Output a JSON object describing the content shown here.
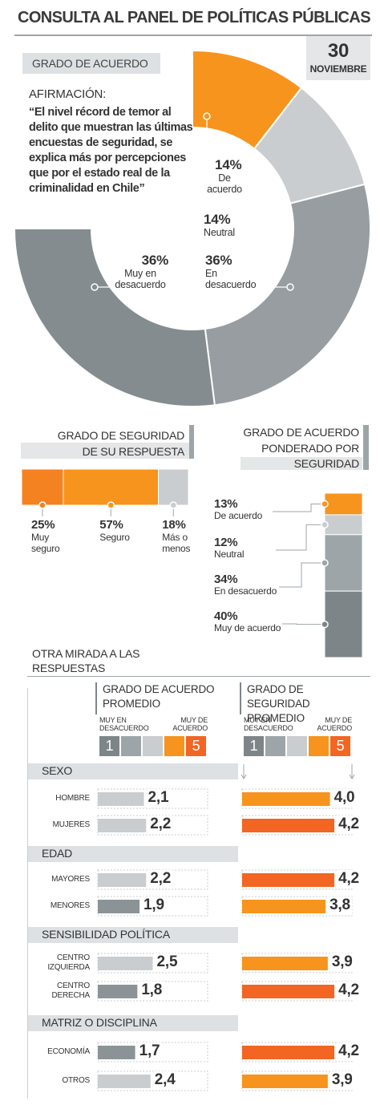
{
  "header": {
    "title": "CONSULTA AL PANEL DE POLÍTICAS PÚBLICAS",
    "day": 30,
    "month": "NOVIEMBRE"
  },
  "statement": {
    "label": "AFIRMACIÓN:",
    "text": "“El nivel récord de temor al delito que muestran las últimas encuestas de seguridad, se explica más por percepciones que por el estado real de la criminalidad en Chile”"
  },
  "chart_data": [
    {
      "type": "donut",
      "title": "GRADO DE ACUERDO",
      "categories": [
        "De acuerdo",
        "Neutral",
        "En desacuerdo",
        "Muy en desacuerdo"
      ],
      "values": [
        14,
        14,
        36,
        36
      ],
      "value_labels": [
        "14%",
        "14%",
        "36%",
        "36%"
      ],
      "colors": [
        "#f7941d",
        "#c9cdcf",
        "#979da0",
        "#858c8f"
      ]
    },
    {
      "type": "hbar-stack",
      "title": "GRADO DE SEGURIDAD DE SU RESPUESTA",
      "categories": [
        "Muy seguro",
        "Seguro",
        "Más o menos"
      ],
      "values": [
        25,
        57,
        18
      ],
      "value_labels": [
        "25%",
        "57%",
        "18%"
      ],
      "colors": [
        "#f58220",
        "#f7941d",
        "#c9cdcf"
      ]
    },
    {
      "type": "vbar-stack",
      "title": "GRADO DE ACUERDO PONDERADO POR SEGURIDAD",
      "categories": [
        "De acuerdo",
        "Neutral",
        "En desacuerdo",
        "Muy de acuerdo"
      ],
      "values": [
        13,
        12,
        34,
        40
      ],
      "value_labels": [
        "13%",
        "12%",
        "34%",
        "40%"
      ],
      "colors": [
        "#f7941d",
        "#c9cdcf",
        "#9ea5a8",
        "#7e8588"
      ]
    },
    {
      "type": "panel-bars",
      "title": "OTRA MIRADA A LAS RESPUESTAS",
      "xlim": [
        0,
        5
      ],
      "scale_min": 1,
      "scale_max": 5,
      "scale_min_label": "MUY EN DESACUERDO",
      "scale_max_label": "MUY DE ACUERDO",
      "groups": [
        {
          "name": "SEXO",
          "categories": [
            "HOMBRE",
            "MUJERES"
          ]
        },
        {
          "name": "EDAD",
          "categories": [
            "MAYORES",
            "MENORES"
          ]
        },
        {
          "name": "SENSIBILIDAD POLÍTICA",
          "categories": [
            "CENTRO IZQUIERDA",
            "CENTRO DERECHA"
          ]
        },
        {
          "name": "MATRIZ O DISCIPLINA",
          "categories": [
            "ECONOMÍA",
            "OTROS"
          ]
        }
      ],
      "series": [
        {
          "name": "GRADO DE ACUERDO PROMEDIO",
          "values": [
            2.1,
            2.2,
            2.2,
            1.9,
            2.5,
            1.8,
            1.7,
            2.4
          ],
          "value_labels": [
            "2,1",
            "2,2",
            "2,2",
            "1,9",
            "2,5",
            "1,8",
            "1,7",
            "2,4"
          ],
          "colors": [
            "#c9cdcf",
            "#c9cdcf",
            "#c9cdcf",
            "#8c9396",
            "#c9cdcf",
            "#8c9396",
            "#8c9396",
            "#c9cdcf"
          ]
        },
        {
          "name": "GRADO DE SEGURIDAD PROMEDIO",
          "values": [
            4.0,
            4.2,
            4.2,
            3.8,
            3.9,
            4.2,
            4.2,
            3.9
          ],
          "value_labels": [
            "4,0",
            "4,2",
            "4,2",
            "3,8",
            "3,9",
            "4,2",
            "4,2",
            "3,9"
          ],
          "colors": [
            "#f7941d",
            "#f26522",
            "#f26522",
            "#f7941d",
            "#f7941d",
            "#f26522",
            "#f26522",
            "#f7941d"
          ]
        }
      ]
    }
  ]
}
